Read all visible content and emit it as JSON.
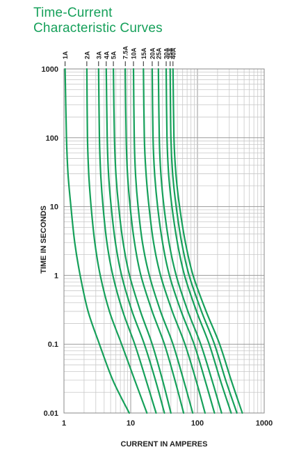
{
  "header": {
    "title_line1": "Time-Current",
    "title_line2": "Characteristic Curves"
  },
  "chart_data": {
    "type": "line",
    "title": "Time-Current Characteristic Curves",
    "xlabel": "CURRENT IN AMPERES",
    "ylabel": "TIME IN SECONDS",
    "x_scale": "log",
    "y_scale": "log",
    "xlim": [
      1,
      1000
    ],
    "ylim": [
      0.01,
      1000
    ],
    "x_ticks": [
      "1",
      "10",
      "100",
      "1000"
    ],
    "y_ticks": [
      "1000",
      "100",
      "10",
      "1",
      "0.1",
      "0.01"
    ],
    "grid": true,
    "line_color": "#16a05a",
    "series": [
      {
        "name": "1A",
        "x": [
          1.04,
          1.09,
          1.15,
          1.27,
          1.45,
          1.75,
          2.3,
          3.4,
          5.4,
          9.5
        ],
        "y": [
          1000,
          100,
          30,
          10,
          3,
          1,
          0.3,
          0.1,
          0.03,
          0.01
        ]
      },
      {
        "name": "2A",
        "x": [
          2.2,
          2.25,
          2.35,
          2.55,
          2.9,
          3.5,
          4.8,
          7.3,
          11.5,
          17.5
        ],
        "y": [
          1000,
          100,
          30,
          10,
          3,
          1,
          0.3,
          0.1,
          0.03,
          0.01
        ]
      },
      {
        "name": "3A",
        "x": [
          3.3,
          3.4,
          3.55,
          3.85,
          4.4,
          5.4,
          7.6,
          11.5,
          17,
          24
        ],
        "y": [
          1000,
          100,
          30,
          10,
          3,
          1,
          0.3,
          0.1,
          0.03,
          0.01
        ]
      },
      {
        "name": "4A",
        "x": [
          4.3,
          4.45,
          4.65,
          5.1,
          5.9,
          7.3,
          10.5,
          16,
          23.5,
          32
        ],
        "y": [
          1000,
          100,
          30,
          10,
          3,
          1,
          0.3,
          0.1,
          0.03,
          0.01
        ]
      },
      {
        "name": "5A",
        "x": [
          5.5,
          5.7,
          6,
          6.6,
          7.7,
          9.6,
          14,
          21,
          30,
          40
        ],
        "y": [
          1000,
          100,
          30,
          10,
          3,
          1,
          0.3,
          0.1,
          0.03,
          0.01
        ]
      },
      {
        "name": "7.5A",
        "x": [
          8.3,
          8.55,
          8.95,
          9.8,
          11.4,
          14.2,
          21,
          32,
          46,
          62
        ],
        "y": [
          1000,
          100,
          30,
          10,
          3,
          1,
          0.3,
          0.1,
          0.03,
          0.01
        ]
      },
      {
        "name": "10A",
        "x": [
          11,
          11.3,
          11.8,
          12.9,
          15,
          19,
          28,
          43,
          62,
          85
        ],
        "y": [
          1000,
          100,
          30,
          10,
          3,
          1,
          0.3,
          0.1,
          0.03,
          0.01
        ]
      },
      {
        "name": "15A",
        "x": [
          15.5,
          16,
          17,
          18.8,
          22,
          28,
          42,
          65,
          95,
          130
        ],
        "y": [
          1000,
          100,
          30,
          10,
          3,
          1,
          0.3,
          0.1,
          0.03,
          0.01
        ]
      },
      {
        "name": "20A",
        "x": [
          21,
          21.6,
          22.8,
          25.3,
          30,
          38,
          57,
          89,
          130,
          180
        ],
        "y": [
          1000,
          100,
          30,
          10,
          3,
          1,
          0.3,
          0.1,
          0.03,
          0.01
        ]
      },
      {
        "name": "25A",
        "x": [
          26,
          26.8,
          28.3,
          31.5,
          37.5,
          48,
          72,
          112,
          165,
          230
        ],
        "y": [
          1000,
          100,
          30,
          10,
          3,
          1,
          0.3,
          0.1,
          0.03,
          0.01
        ]
      },
      {
        "name": "30A",
        "x": [
          34,
          35,
          37,
          41.5,
          50,
          64,
          97,
          150,
          220,
          320
        ],
        "y": [
          1000,
          100,
          30,
          10,
          3,
          1,
          0.3,
          0.1,
          0.03,
          0.01
        ]
      },
      {
        "name": "35A",
        "x": [
          39,
          40,
          42.5,
          48,
          58,
          75,
          115,
          180,
          265,
          390
        ],
        "y": [
          1000,
          100,
          30,
          10,
          3,
          1,
          0.3,
          0.1,
          0.03,
          0.01
        ]
      },
      {
        "name": "40A",
        "x": [
          43,
          44.5,
          47.5,
          54,
          66,
          86,
          135,
          215,
          320,
          470
        ],
        "y": [
          1000,
          100,
          30,
          10,
          3,
          1,
          0.3,
          0.1,
          0.03,
          0.01
        ]
      }
    ]
  }
}
